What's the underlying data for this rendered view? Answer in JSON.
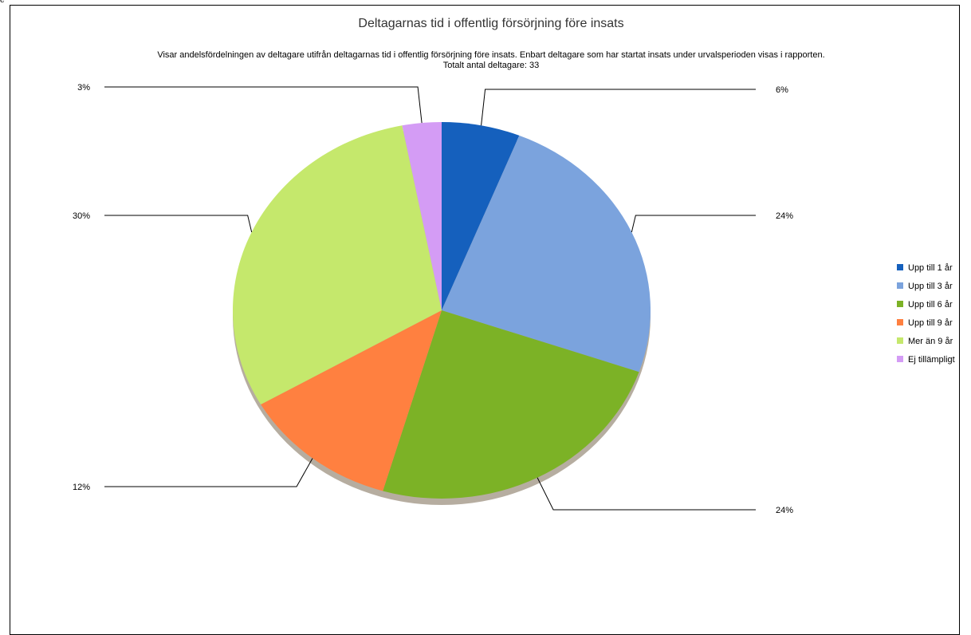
{
  "header_fragment": "e",
  "chart_data": {
    "type": "pie",
    "title": "Deltagarnas tid i offentlig försörjning före insats",
    "subtitle": "Visar andelsfördelningen av deltagare utifrån deltagarnas tid i offentlig försörjning före insats. Enbart deltagare som har startat insats under urvalsperioden visas i rapporten.",
    "total_label": "Totalt antal deltagare: 33",
    "legend_position": "right",
    "slices": [
      {
        "label": "Upp till 1 år",
        "value": 6,
        "display": "6%",
        "color": "#1560BD"
      },
      {
        "label": "Upp till 3 år",
        "value": 24,
        "display": "24%",
        "color": "#7BA3DD"
      },
      {
        "label": "Upp till 6 år",
        "value": 24,
        "display": "24%",
        "color": "#7CB226"
      },
      {
        "label": "Upp till 9 år",
        "value": 12,
        "display": "12%",
        "color": "#FF8040"
      },
      {
        "label": "Mer än 9 år",
        "value": 30,
        "display": "30%",
        "color": "#C5E86C"
      },
      {
        "label": "Ej tillämpligt",
        "value": 3,
        "display": "3%",
        "color": "#D49CF5"
      }
    ]
  }
}
